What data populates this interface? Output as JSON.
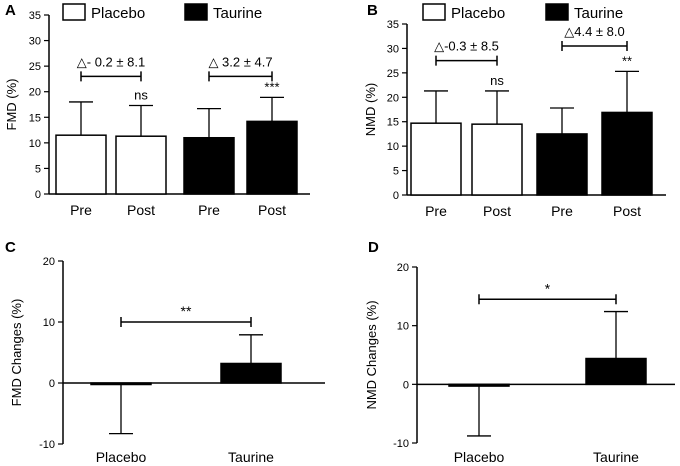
{
  "chart_data": [
    {
      "panel": "A",
      "type": "bar",
      "title": "",
      "xlabel": "",
      "ylabel": "FMD (%)",
      "ylim": [
        0,
        35
      ],
      "yticks": [
        "0",
        "5",
        "10",
        "15",
        "20",
        "25",
        "30",
        "35"
      ],
      "categories": [
        "Pre",
        "Post",
        "Pre",
        "Post"
      ],
      "series_names": [
        "Placebo",
        "Placebo",
        "Taurine",
        "Taurine"
      ],
      "values": [
        11.5,
        11.3,
        11.0,
        14.2
      ],
      "errors": [
        6.5,
        6.0,
        5.7,
        4.7
      ],
      "legend": [
        {
          "name": "Placebo",
          "color": "#ffffff"
        },
        {
          "name": "Taurine",
          "color": "#000000"
        }
      ],
      "annotations": [
        {
          "text": "△- 0.2 ± 8.1",
          "from_bar": 0,
          "to_bar": 1,
          "y": 23
        },
        {
          "text": "△ 3.2 ±  4.7",
          "from_bar": 2,
          "to_bar": 3,
          "y": 23
        }
      ],
      "significance": [
        "",
        "ns",
        "",
        "***"
      ]
    },
    {
      "panel": "B",
      "type": "bar",
      "title": "",
      "xlabel": "",
      "ylabel": "NMD (%)",
      "ylim": [
        0,
        35
      ],
      "yticks": [
        "0",
        "5",
        "10",
        "15",
        "20",
        "25",
        "30",
        "35"
      ],
      "categories": [
        "Pre",
        "Post",
        "Pre",
        "Post"
      ],
      "series_names": [
        "Placebo",
        "Placebo",
        "Taurine",
        "Taurine"
      ],
      "values": [
        14.7,
        14.5,
        12.5,
        16.9
      ],
      "errors": [
        6.6,
        6.8,
        5.3,
        8.4
      ],
      "legend": [
        {
          "name": "Placebo",
          "color": "#ffffff"
        },
        {
          "name": "Taurine",
          "color": "#000000"
        }
      ],
      "annotations": [
        {
          "text": "△-0.3 ± 8.5",
          "from_bar": 0,
          "to_bar": 1,
          "y": 27.5
        },
        {
          "text": "△4.4 ± 8.0",
          "from_bar": 2,
          "to_bar": 3,
          "y": 30.5
        }
      ],
      "significance": [
        "",
        "ns",
        "",
        "**"
      ]
    },
    {
      "panel": "C",
      "type": "bar",
      "title": "",
      "xlabel": "",
      "ylabel": "FMD Changes (%)",
      "ylim": [
        -10,
        20
      ],
      "yticks": [
        "-10",
        "0",
        "10",
        "20"
      ],
      "categories": [
        "Placebo",
        "Taurine"
      ],
      "values": [
        -0.2,
        3.2
      ],
      "errors": [
        8.1,
        4.7
      ],
      "colors": [
        "#000000",
        "#000000"
      ],
      "comparison": {
        "from_bar": 0,
        "to_bar": 1,
        "y": 10,
        "text": "**"
      }
    },
    {
      "panel": "D",
      "type": "bar",
      "title": "",
      "xlabel": "",
      "ylabel": "NMD Changes (%)",
      "ylim": [
        -10,
        20
      ],
      "yticks": [
        "-10",
        "0",
        "10",
        "20"
      ],
      "categories": [
        "Placebo",
        "Taurine"
      ],
      "values": [
        -0.3,
        4.4
      ],
      "errors": [
        8.5,
        8.0
      ],
      "colors": [
        "#000000",
        "#000000"
      ],
      "comparison": {
        "from_bar": 0,
        "to_bar": 1,
        "y": 14.5,
        "text": "*"
      }
    }
  ]
}
